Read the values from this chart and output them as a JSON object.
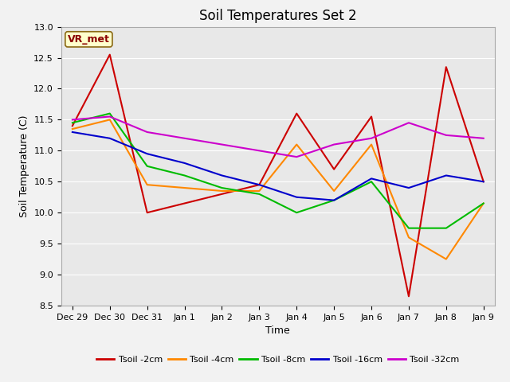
{
  "title": "Soil Temperatures Set 2",
  "xlabel": "Time",
  "ylabel": "Soil Temperature (C)",
  "annotation_text": "VR_met",
  "series": {
    "Tsoil -2cm": {
      "color": "#cc0000",
      "x": [
        0,
        1,
        2,
        3,
        4,
        5,
        6,
        7,
        8,
        9,
        10,
        11
      ],
      "y": [
        11.4,
        12.55,
        10.0,
        10.15,
        10.3,
        10.45,
        11.6,
        10.7,
        11.55,
        8.65,
        12.35,
        10.5
      ]
    },
    "Tsoil -4cm": {
      "color": "#ff8800",
      "x": [
        0,
        1,
        2,
        3,
        4,
        5,
        6,
        7,
        8,
        9,
        10,
        11
      ],
      "y": [
        11.35,
        11.5,
        10.45,
        10.4,
        10.35,
        10.35,
        11.1,
        10.35,
        11.1,
        9.6,
        9.25,
        10.15
      ]
    },
    "Tsoil -8cm": {
      "color": "#00bb00",
      "x": [
        0,
        1,
        2,
        3,
        4,
        5,
        6,
        7,
        8,
        9,
        10,
        11
      ],
      "y": [
        11.45,
        11.6,
        10.75,
        10.6,
        10.4,
        10.3,
        10.0,
        10.2,
        10.5,
        9.75,
        9.75,
        10.15
      ]
    },
    "Tsoil -16cm": {
      "color": "#0000cc",
      "x": [
        0,
        1,
        2,
        3,
        4,
        5,
        6,
        7,
        8,
        9,
        10,
        11
      ],
      "y": [
        11.3,
        11.2,
        10.95,
        10.8,
        10.6,
        10.45,
        10.25,
        10.2,
        10.55,
        10.4,
        10.6,
        10.5
      ]
    },
    "Tsoil -32cm": {
      "color": "#cc00cc",
      "x": [
        0,
        1,
        2,
        3,
        4,
        5,
        6,
        7,
        8,
        9,
        10,
        11
      ],
      "y": [
        11.5,
        11.55,
        11.3,
        11.2,
        11.1,
        11.0,
        10.9,
        11.1,
        11.2,
        11.45,
        11.25,
        11.2
      ]
    }
  },
  "x_tick_positions": [
    0,
    1,
    2,
    3,
    4,
    5,
    6,
    7,
    8,
    9,
    10,
    11
  ],
  "x_tick_labels": [
    "Dec 29",
    "Dec 30",
    "Dec 31",
    "Jan 1",
    "Jan 2",
    "Jan 3",
    "Jan 4",
    "Jan 5",
    "Jan 6",
    "Jan 7",
    "Jan 8",
    "Jan 9"
  ],
  "y_ticks": [
    8.5,
    9.0,
    9.5,
    10.0,
    10.5,
    11.0,
    11.5,
    12.0,
    12.5,
    13.0
  ],
  "xlim": [
    -0.3,
    11.3
  ],
  "ylim": [
    8.5,
    13.0
  ],
  "fig_bg": "#f2f2f2",
  "ax_bg": "#e8e8e8",
  "grid_color": "#ffffff",
  "title_fontsize": 12,
  "tick_fontsize": 8,
  "label_fontsize": 9
}
